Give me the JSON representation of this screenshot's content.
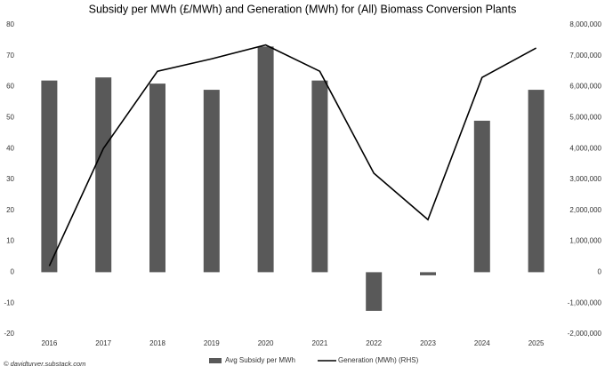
{
  "chart_data": {
    "type": "bar_line",
    "title": "Subsidy per MWh (£/MWh) and Generation (MWh) for (All) Biomass Conversion Plants",
    "categories": [
      "2016",
      "2017",
      "2018",
      "2019",
      "2020",
      "2021",
      "2022",
      "2023",
      "2024",
      "2025"
    ],
    "series": [
      {
        "name": "Avg Subsidy per MWh",
        "type": "bar",
        "color": "#595959",
        "axis": "y",
        "values": [
          62,
          63,
          61,
          59,
          73,
          62,
          -12.5,
          -1,
          49,
          59
        ]
      },
      {
        "name": "Generation (MWh) (RHS)",
        "type": "line",
        "color": "#000000",
        "axis": "y2",
        "values": [
          200000,
          4000000,
          6500000,
          6900000,
          7350000,
          6500000,
          3200000,
          1700000,
          6300000,
          7250000
        ]
      }
    ],
    "ylim": [
      -20,
      80
    ],
    "yticks": [
      -20,
      -10,
      0,
      10,
      20,
      30,
      40,
      50,
      60,
      70,
      80
    ],
    "y2lim": [
      -2000000,
      8000000
    ],
    "y2ticks": [
      {
        "value": -2000000,
        "label": "-2,000,000"
      },
      {
        "value": -1000000,
        "label": "-1,000,000"
      },
      {
        "value": 0,
        "label": "0"
      },
      {
        "value": 1000000,
        "label": "1,000,000"
      },
      {
        "value": 2000000,
        "label": "2,000,000"
      },
      {
        "value": 3000000,
        "label": "3,000,000"
      },
      {
        "value": 4000000,
        "label": "4,000,000"
      },
      {
        "value": 5000000,
        "label": "5,000,000"
      },
      {
        "value": 6000000,
        "label": "6,000,000"
      },
      {
        "value": 7000000,
        "label": "7,000,000"
      },
      {
        "value": 8000000,
        "label": "8,000,000"
      }
    ],
    "grid": false,
    "source": "© davidturver.substack.com"
  }
}
